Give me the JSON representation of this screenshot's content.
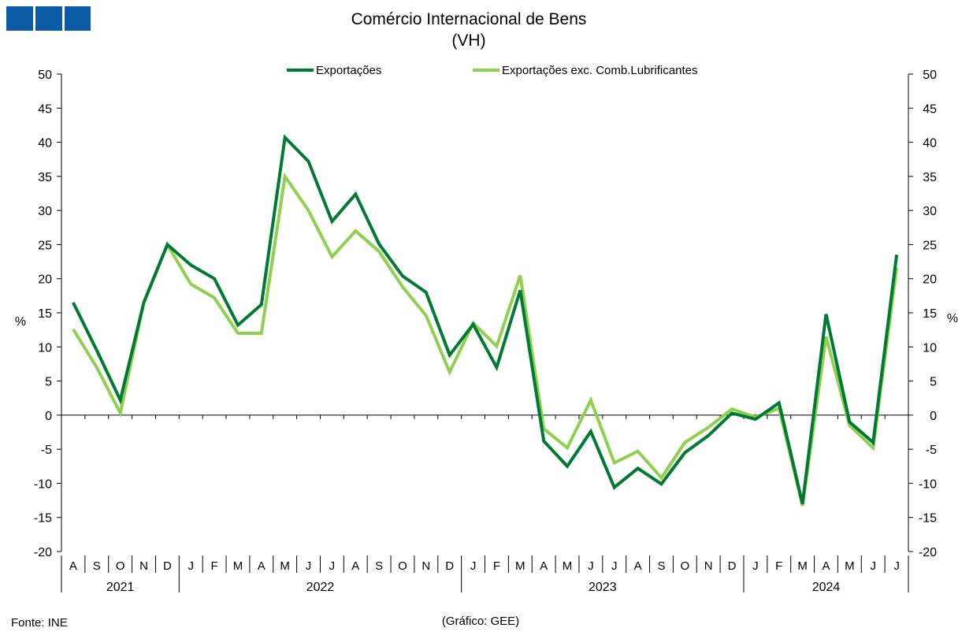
{
  "header": {
    "logo": "logo-blocks"
  },
  "colors": {
    "series1": "#007A33",
    "series2": "#8FD14F",
    "logo": "#0B5AA6"
  },
  "chart_data": {
    "type": "line",
    "title": "Comércio Internacional de Bens",
    "subtitle": "(VH)",
    "ylabel_left": "%",
    "ylabel_right": "%",
    "ylim": [
      -20,
      50
    ],
    "yticks": [
      50,
      45,
      40,
      35,
      30,
      25,
      20,
      15,
      10,
      5,
      0,
      -5,
      -10,
      -15,
      -20
    ],
    "grid": false,
    "legend_position": "top",
    "x": [
      "A",
      "S",
      "O",
      "N",
      "D",
      "J",
      "F",
      "M",
      "A",
      "M",
      "J",
      "J",
      "A",
      "S",
      "O",
      "N",
      "D",
      "J",
      "F",
      "M",
      "A",
      "M",
      "J",
      "J",
      "A",
      "S",
      "O",
      "N",
      "D",
      "J",
      "F",
      "M",
      "A",
      "M",
      "J",
      "J"
    ],
    "years": [
      {
        "label": "2021",
        "start": 0,
        "end": 4
      },
      {
        "label": "2022",
        "start": 5,
        "end": 16
      },
      {
        "label": "2023",
        "start": 17,
        "end": 28
      },
      {
        "label": "2024",
        "start": 29,
        "end": 35
      }
    ],
    "series": [
      {
        "name": "Exportações",
        "color": "#007A33",
        "values": [
          16.5,
          9.5,
          2.2,
          16.5,
          25.0,
          22.0,
          20.0,
          13.2,
          16.2,
          40.7,
          37.2,
          28.4,
          32.4,
          25.1,
          20.4,
          18.0,
          8.8,
          13.3,
          7.0,
          18.3,
          -3.8,
          -7.5,
          -2.4,
          -10.6,
          -7.8,
          -10.1,
          -5.5,
          -3.0,
          0.3,
          -0.6,
          1.8,
          -13.0,
          14.8,
          -1.0,
          -4.0,
          23.5
        ]
      },
      {
        "name": "Exportações exc. Comb.Lubrificantes",
        "color": "#8FD14F",
        "values": [
          12.6,
          7.0,
          0.3,
          16.5,
          25.0,
          19.2,
          17.2,
          12.0,
          12.0,
          35.0,
          30.0,
          23.2,
          27.0,
          24.0,
          18.8,
          14.6,
          6.3,
          13.5,
          10.1,
          20.5,
          -2.0,
          -4.8,
          2.2,
          -7.0,
          -5.3,
          -9.2,
          -4.0,
          -1.8,
          0.9,
          -0.3,
          1.0,
          -13.3,
          11.5,
          -1.5,
          -4.8,
          21.6
        ]
      }
    ]
  },
  "footer": {
    "source": "Fonte: INE",
    "credit": "(Gráfico: GEE)"
  }
}
